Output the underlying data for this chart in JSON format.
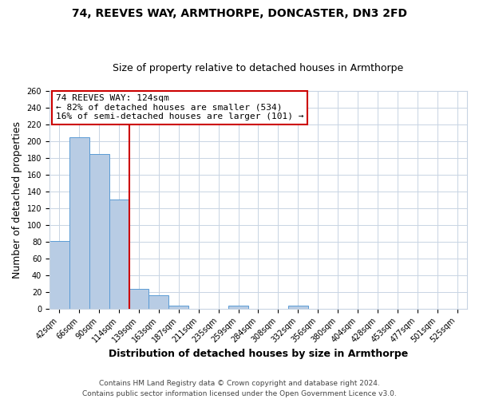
{
  "title": "74, REEVES WAY, ARMTHORPE, DONCASTER, DN3 2FD",
  "subtitle": "Size of property relative to detached houses in Armthorpe",
  "xlabel": "Distribution of detached houses by size in Armthorpe",
  "ylabel": "Number of detached properties",
  "bin_labels": [
    "42sqm",
    "66sqm",
    "90sqm",
    "114sqm",
    "139sqm",
    "163sqm",
    "187sqm",
    "211sqm",
    "235sqm",
    "259sqm",
    "284sqm",
    "308sqm",
    "332sqm",
    "356sqm",
    "380sqm",
    "404sqm",
    "428sqm",
    "453sqm",
    "477sqm",
    "501sqm",
    "525sqm"
  ],
  "bar_values": [
    81,
    205,
    185,
    130,
    24,
    16,
    4,
    0,
    0,
    4,
    0,
    0,
    4,
    0,
    0,
    0,
    0,
    0,
    0,
    0,
    0
  ],
  "bar_color": "#b8cce4",
  "bar_edge_color": "#5b9bd5",
  "vline_color": "#cc0000",
  "vline_pos": 3.5,
  "ylim": [
    0,
    260
  ],
  "yticks": [
    0,
    20,
    40,
    60,
    80,
    100,
    120,
    140,
    160,
    180,
    200,
    220,
    240,
    260
  ],
  "annotation_title": "74 REEVES WAY: 124sqm",
  "annotation_line1": "← 82% of detached houses are smaller (534)",
  "annotation_line2": "16% of semi-detached houses are larger (101) →",
  "annotation_box_color": "#ffffff",
  "annotation_box_edge": "#cc0000",
  "footer_line1": "Contains HM Land Registry data © Crown copyright and database right 2024.",
  "footer_line2": "Contains public sector information licensed under the Open Government Licence v3.0.",
  "background_color": "#ffffff",
  "grid_color": "#c8d4e3",
  "title_fontsize": 10,
  "subtitle_fontsize": 9,
  "axis_label_fontsize": 9,
  "tick_fontsize": 7,
  "annotation_fontsize": 8,
  "footer_fontsize": 6.5
}
